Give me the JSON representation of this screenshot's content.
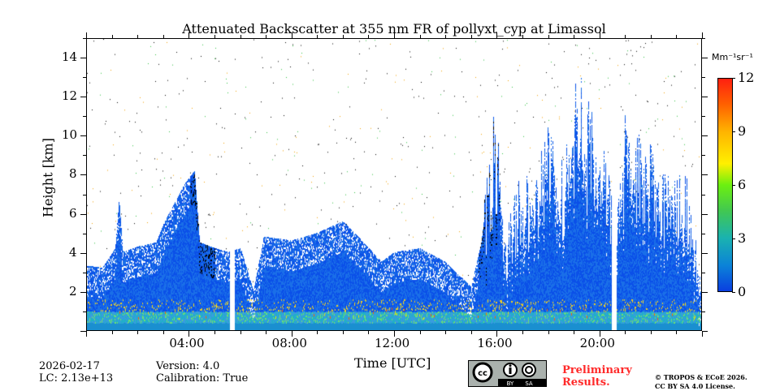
{
  "chart_data": {
    "type": "heatmap",
    "title": "Attenuated Backscatter at 355 nm FR of pollyxt_cyp at Limassol",
    "xlabel": "Time [UTC]",
    "ylabel": "Height [km]",
    "xlim_hours": [
      0,
      24
    ],
    "ylim_km": [
      0,
      15
    ],
    "xticks": [
      {
        "v": 4,
        "label": "04:00"
      },
      {
        "v": 8,
        "label": "08:00"
      },
      {
        "v": 12,
        "label": "12:00"
      },
      {
        "v": 16,
        "label": "16:00"
      },
      {
        "v": 20,
        "label": "20:00"
      }
    ],
    "yticks": [
      {
        "v": 2,
        "label": "2"
      },
      {
        "v": 4,
        "label": "4"
      },
      {
        "v": 6,
        "label": "6"
      },
      {
        "v": 8,
        "label": "8"
      },
      {
        "v": 10,
        "label": "10"
      },
      {
        "v": 12,
        "label": "12"
      },
      {
        "v": 14,
        "label": "14"
      }
    ],
    "colorbar": {
      "unit": "Mm⁻¹sr⁻¹",
      "range": [
        0,
        12
      ],
      "ticks": [
        "0",
        "3",
        "6",
        "9",
        "12"
      ]
    },
    "signal_top_km": [
      [
        0,
        3.3
      ],
      [
        0.6,
        3.2
      ],
      [
        1.1,
        4.2
      ],
      [
        1.25,
        6.8
      ],
      [
        1.4,
        4
      ],
      [
        2,
        4.3
      ],
      [
        2.7,
        4.5
      ],
      [
        3,
        5.5
      ],
      [
        3.8,
        7.5
      ],
      [
        4.2,
        8.2
      ],
      [
        4.4,
        4.5
      ],
      [
        5,
        4.2
      ],
      [
        5.5,
        4
      ],
      [
        6,
        4.2
      ],
      [
        6.5,
        2
      ],
      [
        6.9,
        4.8
      ],
      [
        8,
        4.6
      ],
      [
        9,
        5
      ],
      [
        10,
        5.6
      ],
      [
        10.8,
        4.5
      ],
      [
        11.5,
        3.5
      ],
      [
        12,
        4
      ],
      [
        13,
        4.2
      ],
      [
        14,
        3.5
      ],
      [
        15,
        2.2
      ],
      [
        15.4,
        4.5
      ],
      [
        15.8,
        9
      ],
      [
        16,
        10.5
      ],
      [
        16.3,
        4
      ],
      [
        16.8,
        7
      ],
      [
        17.5,
        7
      ],
      [
        18,
        11
      ],
      [
        18.6,
        8
      ],
      [
        19.2,
        12
      ],
      [
        20,
        9
      ],
      [
        20.6,
        6
      ],
      [
        21,
        10
      ],
      [
        21.5,
        9
      ],
      [
        22,
        8.5
      ],
      [
        22.7,
        7.5
      ],
      [
        23.5,
        7
      ],
      [
        24,
        2
      ]
    ],
    "gaps_hours": [
      [
        5.58,
        5.76
      ],
      [
        20.5,
        20.68
      ]
    ]
  },
  "footer": {
    "date": "2026-02-17",
    "lc": "LC: 2.13e+13",
    "version": "Version: 4.0",
    "calibration": "Calibration: True",
    "preliminary": "Preliminary",
    "results": "Results.",
    "copyright": "© TROPOS & ECoE 2026.",
    "license": "CC BY SA 4.0 License.",
    "cc_logo": "CC BY SA"
  }
}
